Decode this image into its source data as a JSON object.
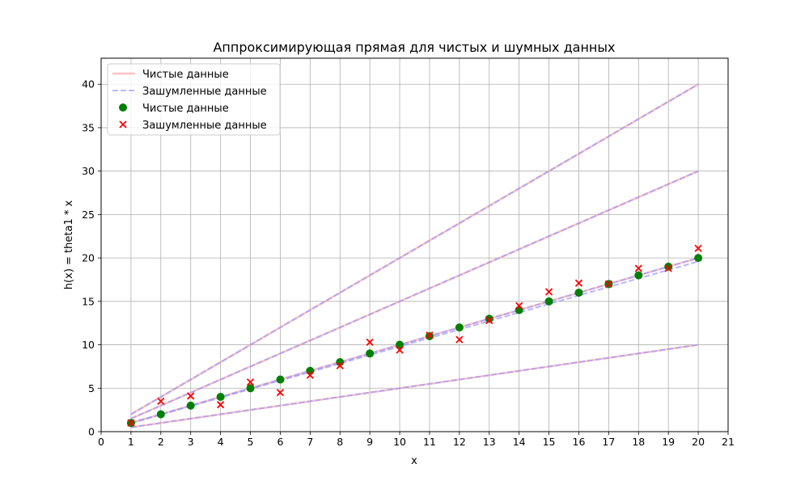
{
  "chart_data": {
    "type": "line",
    "title": "Аппроксимирующая прямая для чистых и шумных данных",
    "xlabel": "x",
    "ylabel": "h(x) = theta1 * x",
    "xlim": [
      0,
      21
    ],
    "ylim": [
      0,
      43
    ],
    "xticks": [
      0,
      1,
      2,
      3,
      4,
      5,
      6,
      7,
      8,
      9,
      10,
      11,
      12,
      13,
      14,
      15,
      16,
      17,
      18,
      19,
      20,
      21
    ],
    "yticks": [
      0,
      5,
      10,
      15,
      20,
      25,
      30,
      35,
      40
    ],
    "grid": true,
    "legend_position": "top-left",
    "x": [
      1,
      2,
      3,
      4,
      5,
      6,
      7,
      8,
      9,
      10,
      11,
      12,
      13,
      14,
      15,
      16,
      17,
      18,
      19,
      20
    ],
    "slopes": [
      2.0,
      1.5,
      0.5
    ],
    "clean_line": {
      "name": "Чистые данные",
      "slope": 1.0,
      "color": "#ff9999"
    },
    "noisy_line": {
      "name": "Зашумленные данные",
      "slope": 0.98,
      "color": "#9999ff"
    },
    "clean_points": {
      "name": "Чистые данные",
      "color": "#008000",
      "y": [
        1,
        2,
        3,
        4,
        5,
        6,
        7,
        8,
        9,
        10,
        11,
        12,
        13,
        14,
        15,
        16,
        17,
        18,
        19,
        20
      ]
    },
    "noisy_points": {
      "name": "Зашумленные данные",
      "color": "#ff0000",
      "y": [
        1.0,
        3.5,
        4.1,
        3.1,
        5.7,
        4.5,
        6.5,
        7.6,
        10.3,
        9.4,
        11.1,
        10.6,
        12.8,
        14.5,
        16.1,
        17.1,
        17.0,
        18.8,
        18.8,
        21.1
      ]
    },
    "legend": [
      "Чистые данные",
      "Зашумленные данные",
      "Чистые данные",
      "Зашумленные данные"
    ]
  }
}
